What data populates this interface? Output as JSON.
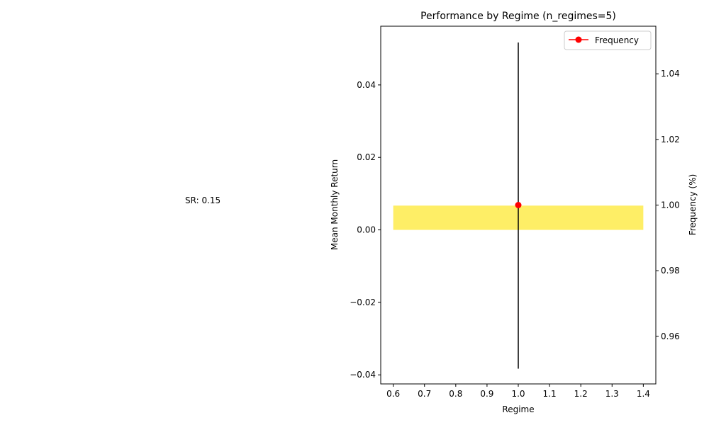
{
  "chart_data": {
    "type": "bar",
    "title": "Performance by Regime (n_regimes=5)",
    "xlabel": "Regime",
    "ylabel": "Mean Monthly Return",
    "ylabel_right": "Frequency (%)",
    "xlim": [
      0.56,
      1.44
    ],
    "ylim": [
      -0.0425,
      0.0562
    ],
    "ylim_right": [
      0.9455,
      1.0545
    ],
    "x_ticks": [
      "0.6",
      "0.7",
      "0.8",
      "0.9",
      "1.0",
      "1.1",
      "1.2",
      "1.3",
      "1.4"
    ],
    "x_tick_values": [
      0.6,
      0.7,
      0.8,
      0.9,
      1.0,
      1.1,
      1.2,
      1.3,
      1.4
    ],
    "y_ticks": [
      "−0.04",
      "−0.02",
      "0.00",
      "0.02",
      "0.04"
    ],
    "y_tick_values": [
      -0.04,
      -0.02,
      0.0,
      0.02,
      0.04
    ],
    "y_right_ticks": [
      "0.96",
      "0.98",
      "1.00",
      "1.02",
      "1.04"
    ],
    "y_right_tick_values": [
      0.96,
      0.98,
      1.0,
      1.02,
      1.04
    ],
    "bars": [
      {
        "x": 1.0,
        "value": 0.0067,
        "width": 0.8,
        "error_low": -0.0383,
        "error_high": 0.0517,
        "color": "#fde725"
      }
    ],
    "series": [
      {
        "name": "Frequency",
        "axis": "right",
        "x": [
          1.0
        ],
        "values": [
          1.0
        ],
        "color": "#ff0000"
      }
    ],
    "legend": {
      "position": "top-right",
      "entries": [
        "Frequency"
      ]
    },
    "annotation": {
      "text": "SR: 0.15"
    },
    "grid": false
  }
}
